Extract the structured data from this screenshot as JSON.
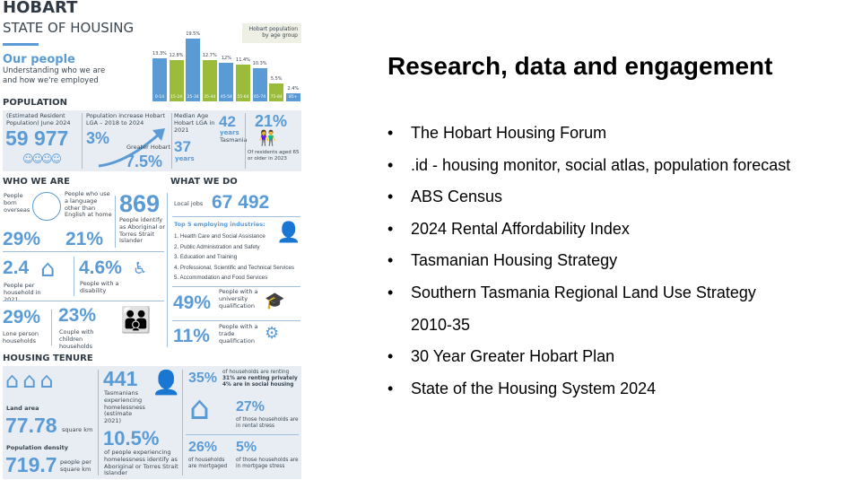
{
  "infographic": {
    "title": "HOBART",
    "subtitle": "STATE OF HOUSING",
    "section": "Our people",
    "section_sub1": "Understanding who we are",
    "section_sub2": "and how we're employed",
    "chart_title": "Hobart population by age group",
    "population": {
      "heading": "POPULATION",
      "erp_label": "(Estimated Resident Population) June 2024",
      "erp_value": "59 977",
      "increase_label": "Population increase Hobart LGA – 2018 to 2024",
      "increase_value": "3%",
      "gh_label": "Greater Hobart",
      "gh_value": "7.5%",
      "median_label": "Median Age Hobart LGA in 2021",
      "median_value": "37",
      "median_unit": "years",
      "tas_value": "42",
      "tas_unit": "years",
      "tas_label": "Tasmania",
      "aged_value": "21%",
      "aged_label": "Of residents aged 65 or older in 2023"
    },
    "who": {
      "heading": "WHO WE ARE",
      "born_label": "People born overseas",
      "born_value": "29%",
      "lang_label": "People who use a language other than English at home",
      "lang_value": "21%",
      "abor_value": "869",
      "abor_label": "People identify as Aboriginal or Torres Strait Islander",
      "hh_value": "2.4",
      "hh_label": "People per household in 2021",
      "dis_value": "4.6%",
      "dis_label": "People with a disability",
      "lone_value": "29%",
      "lone_label": "Lone person households",
      "couple_value": "23%",
      "couple_label": "Couple with children households"
    },
    "what": {
      "heading": "WHAT WE DO",
      "jobs_label": "Local jobs",
      "jobs_value": "67 492",
      "top5_heading": "Top 5 employing industries:",
      "industries": [
        "1. Health Care and Social Assistance",
        "2. Public Administration and Safety",
        "3. Education and Training",
        "4. Professional, Scientific and Technical Services",
        "5. Accommodation and Food Services"
      ],
      "uni_value": "49%",
      "uni_label": "People with a university qualification",
      "trade_value": "11%",
      "trade_label": "People with a trade qualification"
    },
    "tenure": {
      "heading": "HOUSING TENURE",
      "land_label": "Land area",
      "land_value": "77.78",
      "land_unit": "square km",
      "dens_label": "Population density",
      "dens_value": "719.7",
      "dens_unit": "people per square km",
      "homeless_value": "441",
      "homeless_label": "Tasmanians experiencing homelessness (estimate 2021)",
      "ab_value": "10.5%",
      "ab_label": "of people experiencing homelessness identify as Aboriginal or Torres Strait Islander",
      "rent_value": "35%",
      "rent_label": "of households are renting",
      "rent_private": "31% are renting privately",
      "rent_social": "4% are in social housing",
      "stress_value": "27%",
      "stress_label": "of those households are in rental stress",
      "mort_value": "26%",
      "mort_label": "of households are mortgaged",
      "mstress_value": "5%",
      "mstress_label": "of those households are in mortgage stress"
    }
  },
  "chart_data": {
    "type": "bar",
    "title": "Hobart population by age group",
    "categories": [
      "0-14",
      "15-24",
      "25-34",
      "35-44",
      "45-54",
      "55-64",
      "65-74",
      "75-84",
      "85+"
    ],
    "values": [
      13.3,
      12.8,
      19.5,
      12.7,
      12,
      11.4,
      10.3,
      5.5,
      2.4
    ],
    "data_labels": [
      "13.3%",
      "12.8%",
      "19.5%",
      "12.7%",
      "12%",
      "11.4%",
      "10.3%",
      "5.5%",
      "2.4%"
    ],
    "colors": [
      "#5b9bd5",
      "#9bbb3a",
      "#5b9bd5",
      "#9bbb3a",
      "#5b9bd5",
      "#9bbb3a",
      "#5b9bd5",
      "#9bbb3a",
      "#5b9bd5"
    ]
  },
  "slide": {
    "title": "Research, data and engagement",
    "bullet": "•",
    "items": [
      "The Hobart Housing Forum",
      ".id - housing monitor, social atlas, population forecast",
      "ABS Census",
      "2024 Rental Affordability Index",
      "Tasmanian Housing Strategy",
      "Southern Tasmania Regional Land Use Strategy",
      "2010-35",
      "30 Year Greater Hobart Plan",
      "State of the Housing System 2024"
    ]
  }
}
